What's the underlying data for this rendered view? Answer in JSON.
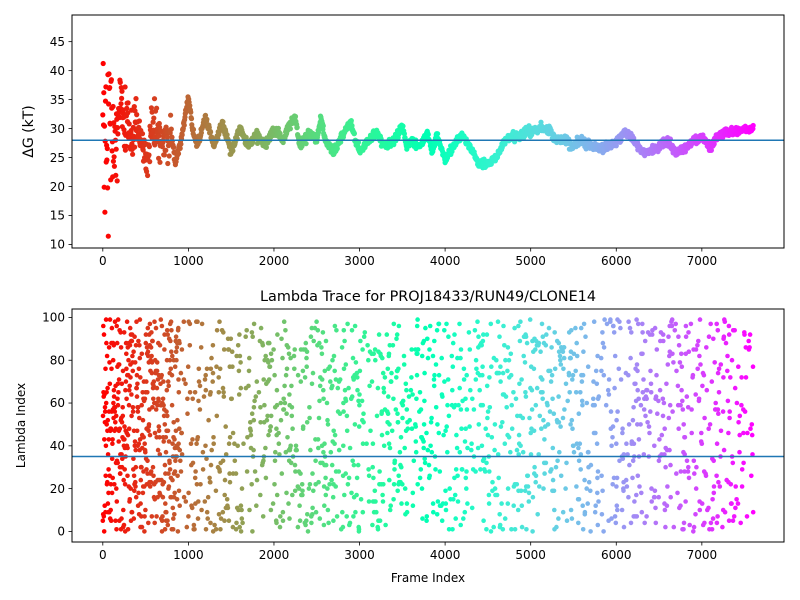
{
  "chart_data": [
    {
      "type": "scatter",
      "title": "",
      "xlabel": "",
      "ylabel": "ΔG (kT)",
      "xlim": [
        -360,
        7960
      ],
      "ylim": [
        9.4,
        49.6
      ],
      "xticks": [
        0,
        1000,
        2000,
        3000,
        4000,
        5000,
        6000,
        7000
      ],
      "yticks": [
        10,
        15,
        20,
        25,
        30,
        35,
        40,
        45
      ],
      "hline": 28,
      "colormap": "rainbow (red at frame 0 to violet at last frame)",
      "x_range": [
        0,
        7600
      ],
      "trend": {
        "x": [
          0,
          20,
          50,
          100,
          150,
          200,
          250,
          300,
          400,
          500,
          600,
          700,
          800,
          850,
          900,
          1000,
          1050,
          1100,
          1200,
          1300,
          1400,
          1500,
          1600,
          1700,
          1800,
          1900,
          2000,
          2100,
          2200,
          2250,
          2300,
          2400,
          2500,
          2550,
          2600,
          2700,
          2800,
          2900,
          2950,
          3000,
          3100,
          3200,
          3300,
          3400,
          3500,
          3550,
          3600,
          3700,
          3800,
          3850,
          3900,
          4000,
          4100,
          4200,
          4300,
          4400,
          4500,
          4600,
          4700,
          4800,
          4900,
          5000,
          5100,
          5200,
          5300,
          5400,
          5500,
          5600,
          5700,
          5800,
          5900,
          6000,
          6100,
          6200,
          6300,
          6400,
          6500,
          6600,
          6700,
          6800,
          6900,
          7000,
          7100,
          7200,
          7300,
          7400,
          7500,
          7600
        ],
        "y": [
          28,
          30,
          32,
          28,
          29,
          33,
          30,
          28,
          30,
          24,
          31,
          27,
          29,
          24,
          27,
          35.5,
          30,
          27,
          32,
          27,
          31,
          26,
          30,
          27,
          29,
          27,
          30,
          28,
          31,
          32,
          27,
          29,
          28,
          32,
          28,
          26,
          29,
          31,
          28,
          26,
          28,
          29,
          27,
          28,
          30.5,
          27,
          28,
          27,
          29,
          26,
          29,
          24.5,
          27,
          29,
          26.5,
          24,
          24,
          25,
          28,
          28.5,
          29,
          29.5,
          30,
          30,
          28,
          28,
          27,
          28,
          27,
          26.5,
          27,
          27.5,
          29.5,
          28,
          26,
          26,
          27,
          28,
          26,
          26.5,
          28,
          28.5,
          27,
          29,
          29.5,
          29.5,
          30,
          30
        ]
      }
    },
    {
      "type": "scatter",
      "title": "Lambda Trace for PROJ18433/RUN49/CLONE14",
      "xlabel": "Frame Index",
      "ylabel": "Lambda Index",
      "xlim": [
        -360,
        7960
      ],
      "ylim": [
        -4.95,
        103.95
      ],
      "xticks": [
        0,
        1000,
        2000,
        3000,
        4000,
        5000,
        6000,
        7000
      ],
      "yticks": [
        0,
        20,
        40,
        60,
        80,
        100
      ],
      "hline": 35,
      "colormap": "rainbow (red at frame 0 to violet at last frame)",
      "x_range": [
        0,
        7600
      ],
      "y_range": [
        0,
        99
      ]
    }
  ]
}
